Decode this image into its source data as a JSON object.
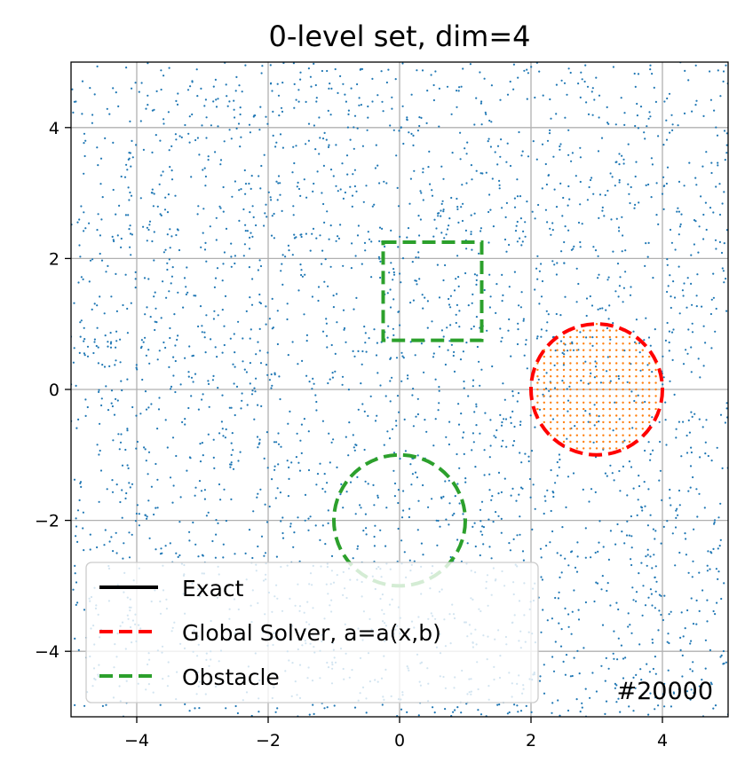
{
  "chart_data": {
    "type": "scatter",
    "title": "0-level set, dim=4",
    "xlabel": "",
    "ylabel": "",
    "xlim": [
      -5,
      5
    ],
    "ylim": [
      -5,
      5
    ],
    "x_ticks": [
      -4,
      -2,
      0,
      2,
      4
    ],
    "y_ticks": [
      -4,
      -2,
      0,
      2,
      4
    ],
    "x_tick_labels": [
      "−4",
      "−2",
      "0",
      "2",
      "4"
    ],
    "y_tick_labels": [
      "−4",
      "−2",
      "0",
      "2",
      "4"
    ],
    "grid": true,
    "legend_position": "lower-left",
    "annotation": "#20000",
    "colors": {
      "samples": "#1f77b4",
      "zero_level_points": "#ff7f0e",
      "exact": "#000000",
      "global_solver": "#ff0000",
      "obstacle": "#2ca02c",
      "grid": "#b0b0b0"
    },
    "series": [
      {
        "name": "Exact",
        "kind": "line",
        "style": "solid"
      },
      {
        "name": "Global Solver, a=a(x,b)",
        "kind": "circle",
        "style": "dashed",
        "center": [
          3,
          0
        ],
        "radius": 1
      },
      {
        "name": "Obstacle",
        "kind": "circle",
        "style": "dashed",
        "center": [
          0,
          -2
        ],
        "radius": 1
      },
      {
        "name": "Obstacle",
        "kind": "square",
        "style": "dashed",
        "center": [
          0.5,
          1.5
        ],
        "half_width": 0.75
      }
    ],
    "scatter": {
      "uniform_samples": {
        "count": 3000,
        "x_range": [
          -5,
          5
        ],
        "y_range": [
          -5,
          5
        ]
      },
      "zero_level_points": {
        "center": [
          3,
          0
        ],
        "radius": 1,
        "spacing": 0.1
      }
    }
  }
}
